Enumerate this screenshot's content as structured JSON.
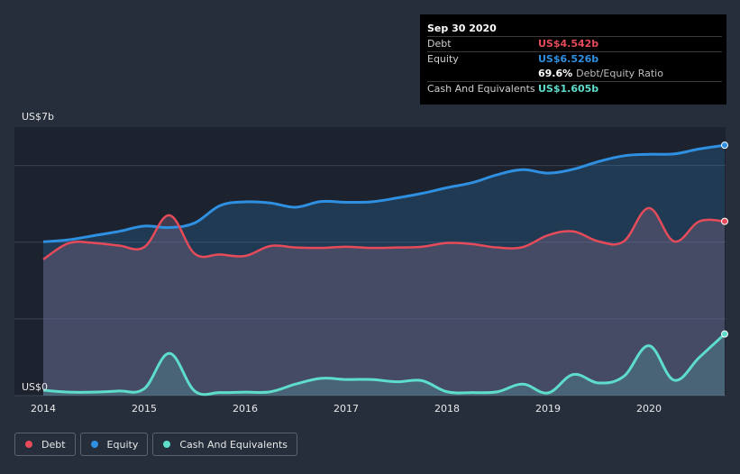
{
  "chart_data": {
    "type": "area",
    "y_unit_labels": {
      "top": "US$7b",
      "bottom": "US$0"
    },
    "ylim": [
      0,
      7
    ],
    "xlim": [
      2014.0,
      2020.75
    ],
    "x_ticks": [
      2014,
      2015,
      2016,
      2017,
      2018,
      2019,
      2020
    ],
    "x_tick_labels": [
      "2014",
      "2015",
      "2016",
      "2017",
      "2018",
      "2019",
      "2020"
    ],
    "series": [
      {
        "name": "Equity",
        "color": "#2f8fe0",
        "x": [
          2014.0,
          2014.25,
          2014.5,
          2014.75,
          2015.0,
          2015.25,
          2015.5,
          2015.75,
          2016.0,
          2016.25,
          2016.5,
          2016.75,
          2017.0,
          2017.25,
          2017.5,
          2017.75,
          2018.0,
          2018.25,
          2018.5,
          2018.75,
          2019.0,
          2019.25,
          2019.5,
          2019.75,
          2020.0,
          2020.25,
          2020.5,
          2020.75
        ],
        "values": [
          4.01,
          4.06,
          4.17,
          4.28,
          4.42,
          4.38,
          4.5,
          4.95,
          5.05,
          5.02,
          4.91,
          5.06,
          5.04,
          5.05,
          5.15,
          5.27,
          5.42,
          5.55,
          5.76,
          5.89,
          5.8,
          5.9,
          6.1,
          6.25,
          6.29,
          6.3,
          6.43,
          6.526
        ]
      },
      {
        "name": "Debt",
        "color": "#e64b5a",
        "x": [
          2014.0,
          2014.25,
          2014.5,
          2014.75,
          2015.0,
          2015.25,
          2015.5,
          2015.75,
          2016.0,
          2016.25,
          2016.5,
          2016.75,
          2017.0,
          2017.25,
          2017.5,
          2017.75,
          2018.0,
          2018.25,
          2018.5,
          2018.75,
          2019.0,
          2019.25,
          2019.5,
          2019.75,
          2020.0,
          2020.25,
          2020.5,
          2020.75
        ],
        "values": [
          3.55,
          3.97,
          3.98,
          3.91,
          3.87,
          4.7,
          3.7,
          3.68,
          3.64,
          3.9,
          3.86,
          3.85,
          3.88,
          3.85,
          3.86,
          3.88,
          3.98,
          3.95,
          3.86,
          3.87,
          4.18,
          4.28,
          4.02,
          4.02,
          4.89,
          4.02,
          4.542,
          4.542
        ]
      },
      {
        "name": "Cash And Equivalents",
        "color": "#5eddcc",
        "x": [
          2014.0,
          2014.25,
          2014.5,
          2014.75,
          2015.0,
          2015.25,
          2015.5,
          2015.75,
          2016.0,
          2016.25,
          2016.5,
          2016.75,
          2017.0,
          2017.25,
          2017.5,
          2017.75,
          2018.0,
          2018.25,
          2018.5,
          2018.75,
          2019.0,
          2019.25,
          2019.5,
          2019.75,
          2020.0,
          2020.25,
          2020.5,
          2020.75
        ],
        "values": [
          0.14,
          0.09,
          0.09,
          0.12,
          0.18,
          1.1,
          0.12,
          0.08,
          0.09,
          0.1,
          0.3,
          0.45,
          0.42,
          0.42,
          0.36,
          0.39,
          0.1,
          0.08,
          0.1,
          0.3,
          0.07,
          0.55,
          0.33,
          0.5,
          1.3,
          0.4,
          1.0,
          1.605
        ]
      }
    ],
    "tooltip": {
      "date": "Sep 30 2020",
      "rows": [
        {
          "label": "Debt",
          "value": "US$4.542b",
          "color": "#e64b5a"
        },
        {
          "label": "Equity",
          "value": "US$6.526b",
          "color": "#2f8fe0"
        },
        {
          "label": "",
          "value": "69.6%",
          "suffix": "Debt/Equity Ratio",
          "color": "#ffffff"
        },
        {
          "label": "Cash And Equivalents",
          "value": "US$1.605b",
          "color": "#5eddcc"
        }
      ]
    },
    "legend": [
      {
        "label": "Debt",
        "color": "#e64b5a"
      },
      {
        "label": "Equity",
        "color": "#2f8fe0"
      },
      {
        "label": "Cash And Equivalents",
        "color": "#5eddcc"
      }
    ]
  }
}
